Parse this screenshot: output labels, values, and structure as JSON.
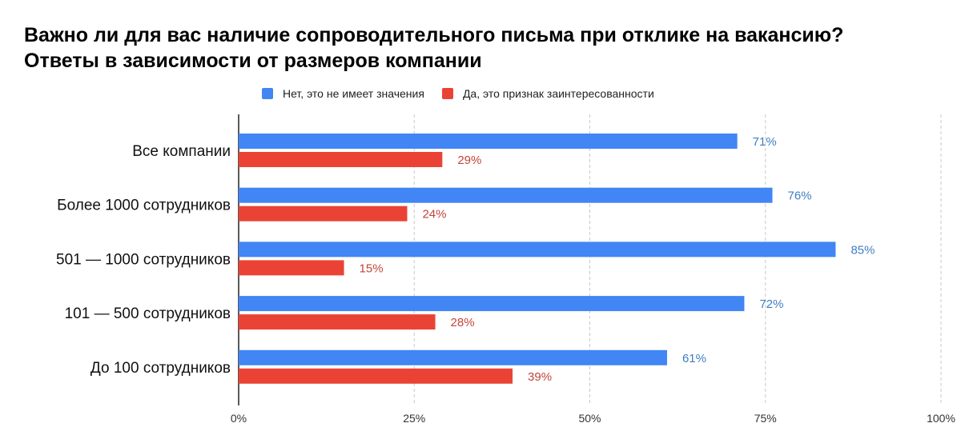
{
  "title": {
    "line1": "Важно ли для вас наличие сопроводительного письма при отклике на вакансию?",
    "line2": "Ответы в зависимости от размеров компании"
  },
  "colors": {
    "no": "#4285f4",
    "yes": "#ea4335",
    "no_label": "#3f7ec2",
    "yes_label": "#c2453a"
  },
  "chart_data": {
    "type": "bar",
    "orientation": "horizontal",
    "title": "Важно ли для вас наличие сопроводительного письма при отклике на вакансию? Ответы в зависимости от размеров компании",
    "categories": [
      "Все компании",
      "Более 1000 сотрудников",
      "501 — 1000 сотрудников",
      "101 — 500 сотрудников",
      "До 100 сотрудников"
    ],
    "series": [
      {
        "name": "Нет, это не имеет значения",
        "values": [
          71,
          76,
          85,
          72,
          61
        ],
        "labels": [
          "71%",
          "76%",
          "85%",
          "72%",
          "61%"
        ]
      },
      {
        "name": "Да, это признак заинтересованности",
        "values": [
          29,
          24,
          15,
          28,
          39
        ],
        "labels": [
          "29%",
          "24%",
          "15%",
          "28%",
          "39%"
        ]
      }
    ],
    "xlim": [
      0,
      100
    ],
    "xticks": [
      0,
      25,
      50,
      75,
      100
    ],
    "xtick_labels": [
      "0%",
      "25%",
      "50%",
      "75%",
      "100%"
    ],
    "grid": "vertical-dashed",
    "legend_position": "top-center"
  }
}
